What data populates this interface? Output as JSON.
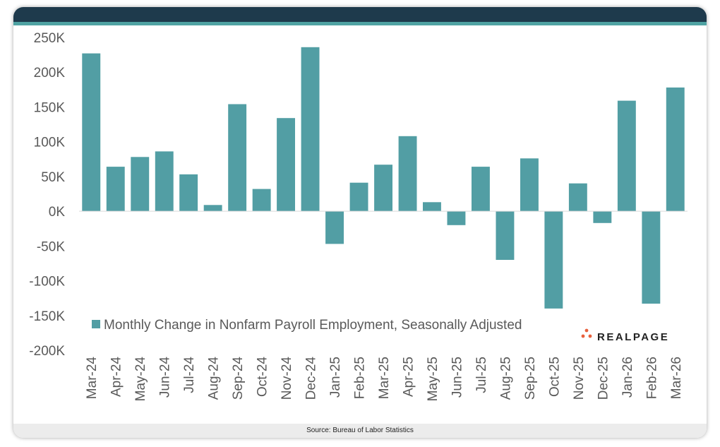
{
  "chart_data": {
    "type": "bar",
    "categories": [
      "Mar-24",
      "Apr-24",
      "May-24",
      "Jun-24",
      "Jul-24",
      "Aug-24",
      "Sep-24",
      "Oct-24",
      "Nov-24",
      "Dec-24",
      "Jan-25",
      "Feb-25",
      "Mar-25",
      "Apr-25",
      "May-25",
      "Jun-25",
      "Jul-25",
      "Aug-25",
      "Sep-25",
      "Oct-25",
      "Nov-25",
      "Dec-25",
      "Jan-26",
      "Feb-26",
      "Mar-26"
    ],
    "series": [
      {
        "name": "Monthly Change in Nonfarm Payroll Employment, Seasonally Adjusted",
        "values": [
          227000,
          64000,
          78000,
          86000,
          53000,
          9000,
          154000,
          32000,
          134000,
          236000,
          -47000,
          41000,
          67000,
          108000,
          13000,
          -20000,
          64000,
          -70000,
          76000,
          -140000,
          40000,
          -17000,
          159000,
          -133000,
          178000
        ],
        "color": "#529ea4"
      }
    ],
    "ylim": [
      -200000,
      250000
    ],
    "yticks": [
      250000,
      200000,
      150000,
      100000,
      50000,
      0,
      -50000,
      -100000,
      -150000,
      -200000
    ],
    "ytick_labels": [
      "250K",
      "200K",
      "150K",
      "100K",
      "50K",
      "0K",
      "-50K",
      "-100K",
      "-150K",
      "-200K"
    ],
    "grid": false,
    "legend": "bottom-left"
  },
  "logo": {
    "text": "REALPAGE",
    "dot_color": "#e8603c",
    "text_color": "#222222"
  },
  "footer": {
    "source": "Source: Bureau of Labor Statistics"
  },
  "colors": {
    "header": "#1e3a4c",
    "accent": "#4fa3a3",
    "bar": "#529ea4"
  }
}
